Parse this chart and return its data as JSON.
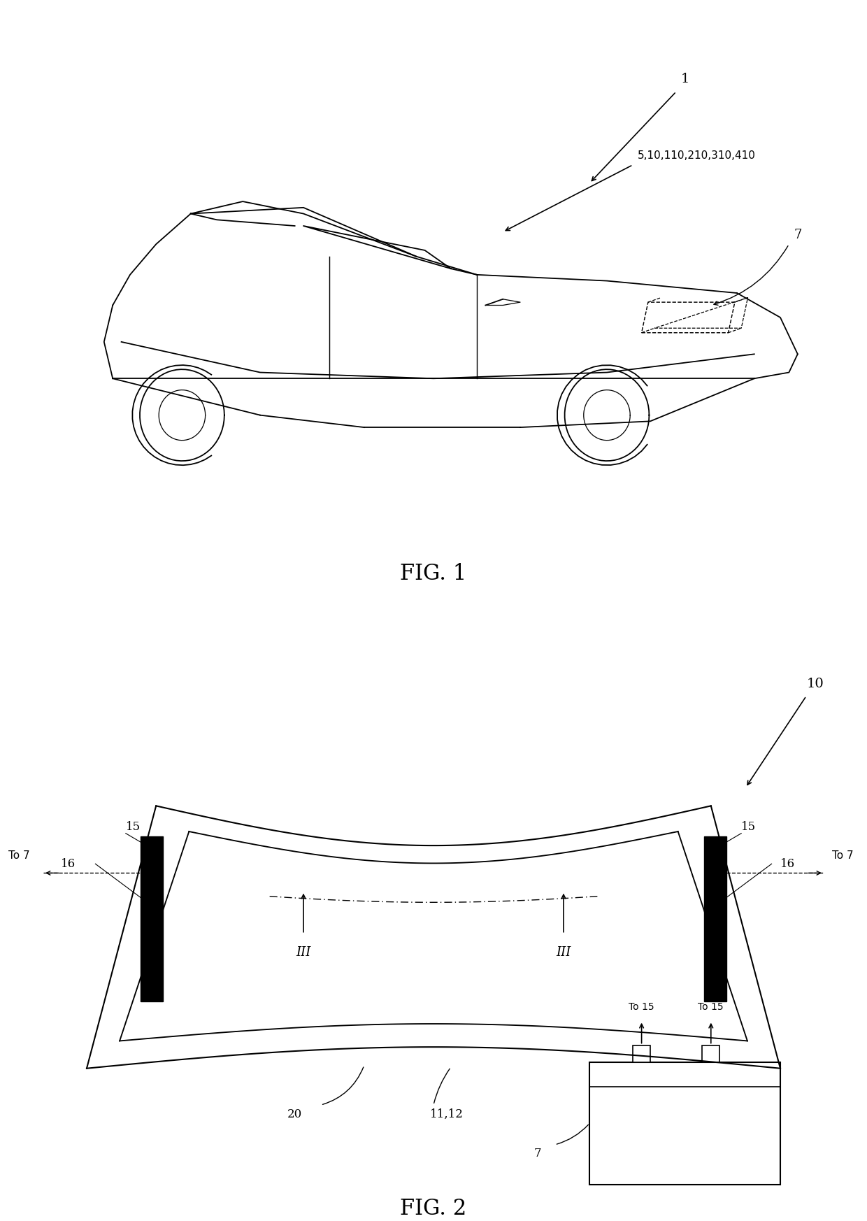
{
  "bg_color": "#ffffff",
  "fig_width": 12.4,
  "fig_height": 17.46,
  "fig1_label": "FIG. 1",
  "fig2_label": "FIG. 2",
  "label_1": "1",
  "label_7": "7",
  "label_10": "10",
  "label_5_10": "5,10,110,210,310,410",
  "label_15_left": "15",
  "label_15_right": "15",
  "label_16_left": "16",
  "label_16_right": "16",
  "label_20": "20",
  "label_11_12": "11,12",
  "label_to7_left": "To 7",
  "label_to7_right": "To 7",
  "label_to15_left": "To 15",
  "label_to15_right": "To 15",
  "label_7_box": "7",
  "label_III_left": "III",
  "label_III_right": "III"
}
